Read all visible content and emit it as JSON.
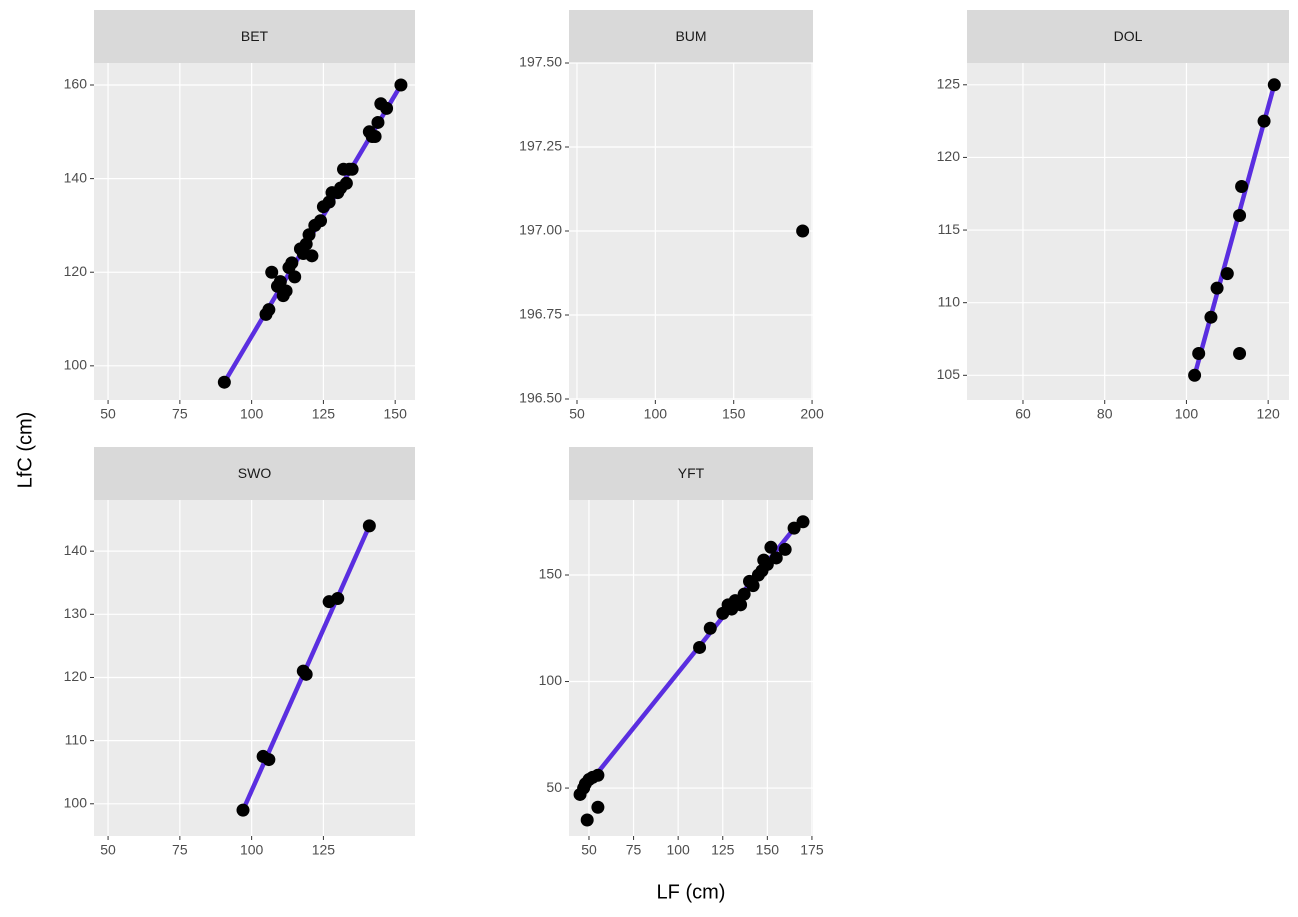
{
  "xlabel": "LF (cm)",
  "ylabel": "LfC (cm)",
  "chart_data": [
    {
      "type": "scatter",
      "title": "BET",
      "color": "#000000",
      "grid": true,
      "x": [
        90.5,
        105,
        106,
        107,
        109,
        110,
        111,
        112,
        113,
        114,
        115,
        117,
        118,
        119,
        120,
        121,
        122,
        124,
        125,
        127,
        128,
        130,
        131,
        132,
        133,
        134,
        135,
        141,
        142,
        143,
        144,
        145,
        147,
        152
      ],
      "y": [
        96.5,
        111,
        112,
        120,
        117,
        118,
        115,
        116,
        121,
        122,
        119,
        125,
        124,
        126,
        128,
        123.5,
        130,
        131,
        134,
        135,
        137,
        137,
        138,
        142,
        139,
        142,
        142,
        150,
        149,
        149,
        152,
        156,
        155,
        160
      ],
      "line": {
        "x": [
          90.5,
          152
        ],
        "y": [
          96.5,
          160
        ],
        "color": "#5a2ee0"
      },
      "xlim": [
        45.1,
        156.9
      ],
      "ylim": [
        92.7,
        164.7
      ],
      "xticks": [
        50,
        75,
        100,
        125,
        150
      ],
      "yticks": [
        100,
        120,
        140,
        160
      ]
    },
    {
      "type": "scatter",
      "title": "BUM",
      "color": "#000000",
      "grid": true,
      "x": [
        194
      ],
      "y": [
        197
      ],
      "xlim": [
        44.9,
        200.6
      ],
      "ylim": [
        196.497,
        197.5
      ],
      "xticks": [
        50,
        100,
        150,
        200
      ],
      "yticks": [
        {
          "value": 196.5,
          "label": "196.50"
        },
        {
          "value": 196.75,
          "label": "196.75"
        },
        {
          "value": 197,
          "label": "197.00"
        },
        {
          "value": 197.25,
          "label": "197.25"
        },
        {
          "value": 197.5,
          "label": "197.50"
        }
      ]
    },
    {
      "type": "scatter",
      "title": "DOL",
      "color": "#000000",
      "grid": true,
      "x": [
        102,
        103,
        106,
        107.5,
        110,
        113,
        113.5,
        113,
        119,
        121.5
      ],
      "y": [
        105,
        106.5,
        109,
        111,
        112,
        116,
        118,
        106.5,
        122.5,
        125
      ],
      "line": {
        "x": [
          102,
          121.5
        ],
        "y": [
          105,
          125
        ],
        "color": "#5a2ee0"
      },
      "xlim": [
        46.3,
        125.1
      ],
      "ylim": [
        103.3,
        126.5
      ],
      "xticks": [
        60,
        80,
        100,
        120
      ],
      "yticks": [
        105,
        110,
        115,
        120,
        125
      ]
    },
    {
      "type": "scatter",
      "title": "SWO",
      "color": "#000000",
      "grid": true,
      "x": [
        97,
        104,
        106,
        118,
        119,
        127,
        130,
        141
      ],
      "y": [
        99,
        107.5,
        107,
        121,
        120.5,
        132,
        132.5,
        144
      ],
      "line": {
        "x": [
          97,
          141
        ],
        "y": [
          99,
          144
        ],
        "color": "#5a2ee0"
      },
      "xlim": [
        45.1,
        156.9
      ],
      "ylim": [
        94.9,
        148.1
      ],
      "xticks": [
        50,
        75,
        100,
        125
      ],
      "yticks": [
        100,
        110,
        120,
        130,
        140
      ]
    },
    {
      "type": "scatter",
      "title": "YFT",
      "color": "#000000",
      "grid": true,
      "x": [
        45,
        47,
        48,
        50,
        52,
        55,
        49,
        55,
        112,
        118,
        125,
        128,
        130,
        132,
        135,
        137,
        140,
        142,
        145,
        147,
        148,
        150,
        152,
        155,
        160,
        165,
        170
      ],
      "y": [
        47,
        50,
        52,
        54,
        55,
        56,
        35,
        41,
        116,
        125,
        132,
        136,
        134,
        138,
        136,
        141,
        147,
        145,
        150,
        152,
        157,
        155,
        163,
        158,
        162,
        172,
        175
      ],
      "line": {
        "x": [
          45,
          170
        ],
        "y": [
          47,
          177
        ],
        "color": "#5a2ee0"
      },
      "xlim": [
        38.8,
        175.6
      ],
      "ylim": [
        27.5,
        185.2
      ],
      "xticks": [
        50,
        75,
        100,
        125,
        150,
        175
      ],
      "yticks": [
        50,
        100,
        150
      ]
    }
  ]
}
